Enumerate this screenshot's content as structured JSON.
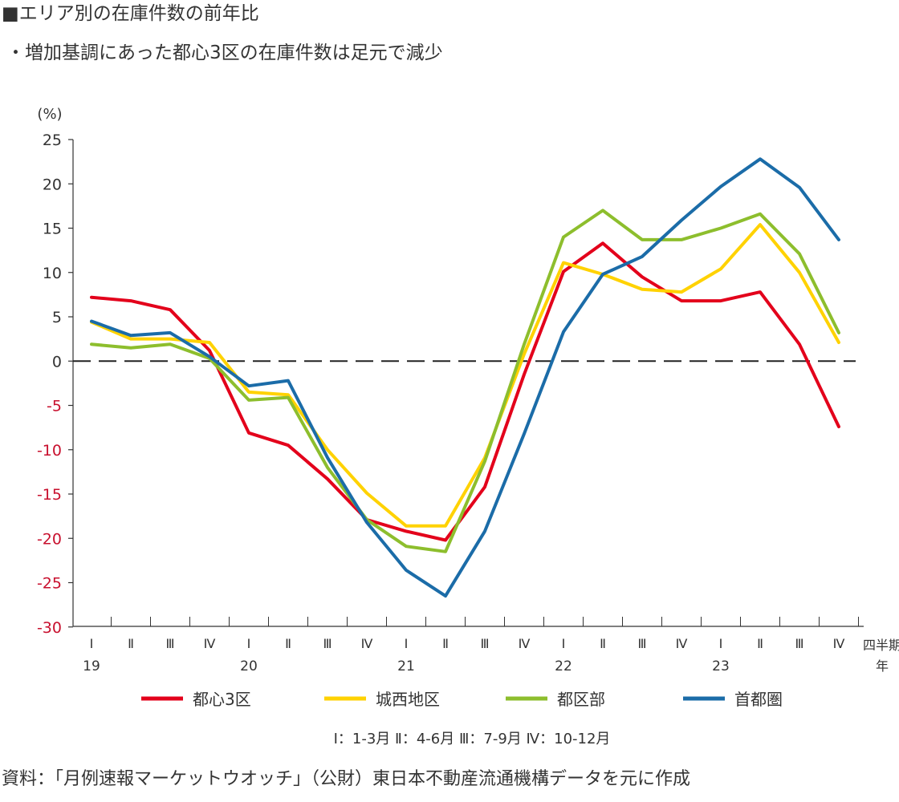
{
  "header": {
    "title": "■エリア別の在庫件数の前年比",
    "subtitle": "・増加基調にあった都心3区の在庫件数は足元で減少"
  },
  "footer": {
    "source": "資料：「月例速報マーケットウオッチ」（公財）東日本不動産流通機構データを元に作成"
  },
  "chart_data": {
    "type": "line",
    "yunit": "(%)",
    "xunit": [
      "四半期",
      "年"
    ],
    "ylim": [
      -30,
      25
    ],
    "yticks": [
      25,
      20,
      15,
      10,
      5,
      0,
      -5,
      -10,
      -15,
      -20,
      -25,
      -30
    ],
    "quarter_labels": [
      "Ⅰ",
      "Ⅱ",
      "Ⅲ",
      "Ⅳ",
      "Ⅰ",
      "Ⅱ",
      "Ⅲ",
      "Ⅳ",
      "Ⅰ",
      "Ⅱ",
      "Ⅲ",
      "Ⅳ",
      "Ⅰ",
      "Ⅱ",
      "Ⅲ",
      "Ⅳ",
      "Ⅰ",
      "Ⅱ",
      "Ⅲ",
      "Ⅳ"
    ],
    "years": [
      {
        "label": "19",
        "start_index": 0
      },
      {
        "label": "20",
        "start_index": 4
      },
      {
        "label": "21",
        "start_index": 8
      },
      {
        "label": "22",
        "start_index": 12
      },
      {
        "label": "23",
        "start_index": 16
      }
    ],
    "quarter_note": "Ⅰ：1-3月 Ⅱ：4-6月 Ⅲ：7-9月 Ⅳ：10-12月",
    "grid": false,
    "zero_line": "dashed",
    "legend_position": "bottom",
    "series": [
      {
        "name": "都心3区",
        "color": "#e3001b",
        "values": [
          7.2,
          6.8,
          5.8,
          1.2,
          -8.1,
          -9.5,
          -13.3,
          -17.9,
          -19.2,
          -20.2,
          -14.2,
          -1.5,
          10.1,
          13.3,
          9.5,
          6.8,
          6.8,
          7.8,
          1.9,
          -7.4
        ]
      },
      {
        "name": "城西地区",
        "color": "#ffd200",
        "values": [
          4.4,
          2.5,
          2.5,
          2.1,
          -3.5,
          -3.8,
          -10.0,
          -14.9,
          -18.6,
          -18.6,
          -10.9,
          0.8,
          11.1,
          9.8,
          8.1,
          7.8,
          10.4,
          15.4,
          10.0,
          2.1
        ]
      },
      {
        "name": "都区部",
        "color": "#8dbe2d",
        "values": [
          1.9,
          1.5,
          1.9,
          0.3,
          -4.4,
          -4.1,
          -12.0,
          -17.9,
          -20.9,
          -21.5,
          -11.3,
          1.9,
          14.0,
          17.0,
          13.7,
          13.7,
          15.0,
          16.6,
          12.1,
          3.2
        ]
      },
      {
        "name": "首都圏",
        "color": "#1b6ca8",
        "values": [
          4.5,
          2.9,
          3.2,
          0.5,
          -2.8,
          -2.2,
          -10.9,
          -18.2,
          -23.6,
          -26.5,
          -19.2,
          -8.2,
          3.3,
          9.8,
          11.8,
          15.9,
          19.7,
          22.8,
          19.6,
          13.7
        ]
      }
    ]
  }
}
